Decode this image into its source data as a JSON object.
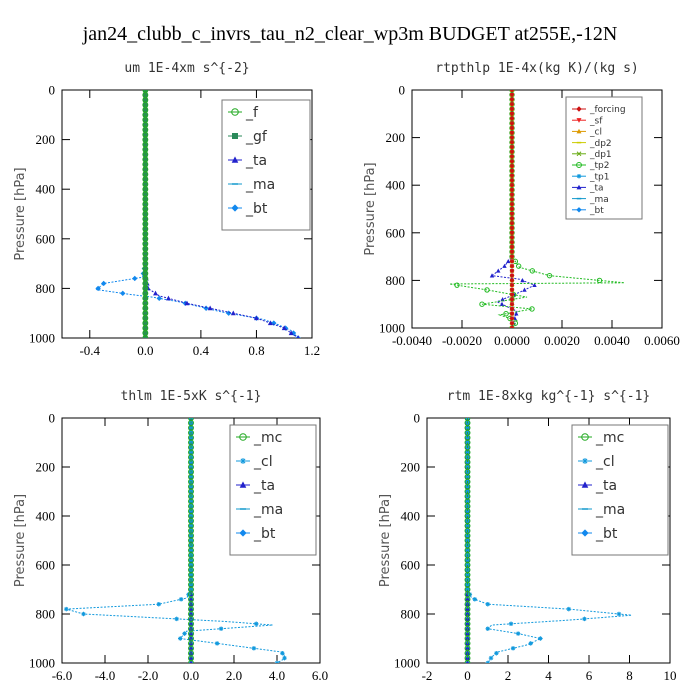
{
  "figure_title": "jan24_clubb_c_invrs_tau_n2_clear_wp3m  BUDGET at255E,-12N",
  "chart_data": [
    {
      "type": "line",
      "title": "um  1E-4xm s^{-2}",
      "ylabel": "Pressure [hPa]",
      "xlim": [
        -0.6,
        1.2
      ],
      "ylim": [
        1000,
        0
      ],
      "x_ticks": [
        "-0.4",
        "0.0",
        "0.4",
        "0.8",
        "1.2"
      ],
      "x_tick_values": [
        -0.4,
        0.0,
        0.4,
        0.8,
        1.2
      ],
      "y_ticks": [
        "0",
        "200",
        "400",
        "600",
        "800",
        "1000"
      ],
      "legend_position": "upper-right",
      "series": [
        {
          "name": "_f",
          "color": "#22aa22",
          "marker": "circle",
          "x": [
            0,
            0,
            0,
            0,
            0,
            0,
            0,
            0,
            0,
            0,
            0
          ],
          "y": [
            0,
            100,
            200,
            300,
            400,
            500,
            600,
            700,
            800,
            900,
            1000
          ]
        },
        {
          "name": "_gf",
          "color": "#2a8a5a",
          "marker": "square",
          "x": [
            0,
            0,
            0,
            0,
            0,
            0,
            0,
            0,
            0,
            0,
            0
          ],
          "y": [
            0,
            100,
            200,
            300,
            400,
            500,
            600,
            700,
            800,
            900,
            1000
          ]
        },
        {
          "name": "_ta",
          "color": "#2222cc",
          "marker": "triangle",
          "x": [
            0,
            0,
            0.02,
            0.1,
            0.3,
            0.55,
            0.8,
            1.0,
            1.1
          ],
          "y": [
            0,
            740,
            800,
            830,
            860,
            890,
            920,
            960,
            1000
          ]
        },
        {
          "name": "_ma",
          "color": "#1199cc",
          "marker": "dash",
          "x": [
            0,
            0,
            0,
            0,
            0,
            0,
            0,
            0,
            0,
            0,
            0
          ],
          "y": [
            0,
            100,
            200,
            300,
            400,
            500,
            600,
            700,
            800,
            900,
            1000
          ]
        },
        {
          "name": "_bt",
          "color": "#1188ee",
          "marker": "diamond",
          "x": [
            0,
            0,
            0,
            -0.02,
            -0.3,
            -0.35,
            -0.1,
            0.05,
            0.25,
            0.4,
            0.55,
            0.7,
            0.85,
            0.95,
            1.05,
            1.1
          ],
          "y": [
            0,
            400,
            700,
            755,
            780,
            805,
            825,
            835,
            855,
            875,
            895,
            910,
            925,
            945,
            970,
            1000
          ]
        }
      ]
    },
    {
      "type": "line",
      "title": "rtpthlp  1E-4x(kg K)/(kg s)",
      "ylabel": "Pressure [hPa]",
      "xlim": [
        -0.004,
        0.006
      ],
      "ylim": [
        1000,
        0
      ],
      "x_ticks": [
        "-0.0040",
        "-0.0020",
        "0.0000",
        "0.0020",
        "0.0040",
        "0.0060"
      ],
      "x_tick_values": [
        -0.004,
        -0.002,
        0.0,
        0.002,
        0.004,
        0.006
      ],
      "y_ticks": [
        "0",
        "200",
        "400",
        "600",
        "800",
        "1000"
      ],
      "legend_position": "upper-right",
      "series": [
        {
          "name": "_forcing",
          "color": "#cc1111",
          "marker": "diamond",
          "x": [
            0,
            0,
            0,
            0,
            0,
            0,
            0,
            0,
            0,
            0,
            0
          ],
          "y": [
            0,
            100,
            200,
            300,
            400,
            500,
            600,
            700,
            800,
            900,
            1000
          ]
        },
        {
          "name": "_sf",
          "color": "#ee2222",
          "marker": "triangle-down",
          "x": [
            0,
            0,
            0,
            0,
            0,
            0,
            0,
            0,
            0,
            0,
            0
          ],
          "y": [
            0,
            100,
            200,
            300,
            400,
            500,
            600,
            700,
            800,
            900,
            1000
          ]
        },
        {
          "name": "_cl",
          "color": "#dd9900",
          "marker": "triangle",
          "x": [
            0,
            0,
            0,
            0,
            0,
            0,
            0,
            0,
            0,
            0,
            0
          ],
          "y": [
            0,
            100,
            200,
            300,
            400,
            500,
            600,
            700,
            800,
            900,
            1000
          ]
        },
        {
          "name": "_dp2",
          "color": "#cccc00",
          "marker": "dash",
          "x": [
            0,
            0,
            0,
            0,
            0,
            0,
            0,
            0,
            0,
            0,
            0
          ],
          "y": [
            0,
            100,
            200,
            300,
            400,
            500,
            600,
            700,
            800,
            900,
            1000
          ]
        },
        {
          "name": "_dp1",
          "color": "#66aa11",
          "marker": "x",
          "x": [
            0,
            0,
            0,
            0,
            0,
            0,
            0,
            0,
            0,
            0,
            0
          ],
          "y": [
            0,
            100,
            200,
            300,
            400,
            500,
            600,
            700,
            800,
            900,
            1000
          ]
        },
        {
          "name": "_tp2",
          "color": "#22bb22",
          "marker": "circle",
          "x": [
            0,
            0,
            0.0003,
            0.0015,
            0.0045,
            -0.0025,
            -0.001,
            0.0006,
            -0.0012,
            0.0008,
            -0.0005,
            0.0002,
            0
          ],
          "y": [
            0,
            700,
            745,
            780,
            810,
            815,
            840,
            870,
            900,
            920,
            945,
            970,
            1000
          ]
        },
        {
          "name": "_tp1",
          "color": "#1199dd",
          "marker": "star",
          "x": [
            0,
            0,
            0,
            0,
            0,
            0,
            0,
            0,
            0,
            0,
            0
          ],
          "y": [
            0,
            100,
            200,
            300,
            400,
            500,
            600,
            700,
            800,
            900,
            1000
          ]
        },
        {
          "name": "_ta",
          "color": "#2222cc",
          "marker": "triangle",
          "x": [
            0,
            0,
            -0.0003,
            -0.0008,
            0.0003,
            0.0009,
            0.0003,
            -0.0006,
            0.0002,
            0
          ],
          "y": [
            0,
            700,
            740,
            780,
            795,
            820,
            850,
            890,
            930,
            1000
          ]
        },
        {
          "name": "_ma",
          "color": "#1199cc",
          "marker": "dash",
          "x": [
            0,
            0,
            0,
            0,
            0,
            0,
            0,
            0,
            0,
            0,
            0
          ],
          "y": [
            0,
            100,
            200,
            300,
            400,
            500,
            600,
            700,
            800,
            900,
            1000
          ]
        },
        {
          "name": "_bt",
          "color": "#1188ee",
          "marker": "diamond",
          "x": [
            0,
            0,
            0,
            0,
            0,
            0,
            0,
            0,
            0,
            0,
            0
          ],
          "y": [
            0,
            100,
            200,
            300,
            400,
            500,
            600,
            700,
            800,
            900,
            1000
          ]
        }
      ]
    },
    {
      "type": "line",
      "title": "thlm  1E-5xK s^{-1}",
      "ylabel": "Pressure [hPa]",
      "xlim": [
        -6.0,
        6.0
      ],
      "ylim": [
        1000,
        0
      ],
      "x_ticks": [
        "-6.0",
        "-4.0",
        "-2.0",
        "0.0",
        "2.0",
        "4.0",
        "6.0"
      ],
      "x_tick_values": [
        -6,
        -4,
        -2,
        0,
        2,
        4,
        6
      ],
      "y_ticks": [
        "0",
        "200",
        "400",
        "600",
        "800",
        "1000"
      ],
      "legend_position": "upper-right",
      "series": [
        {
          "name": "_mc",
          "color": "#22aa22",
          "marker": "circle",
          "x": [
            0,
            0,
            0,
            0,
            0,
            0,
            0,
            0,
            0,
            0,
            0
          ],
          "y": [
            0,
            100,
            200,
            300,
            400,
            500,
            600,
            700,
            800,
            900,
            1000
          ]
        },
        {
          "name": "_cl",
          "color": "#1199dd",
          "marker": "star",
          "x": [
            0,
            0,
            0,
            -0.2,
            -1.5,
            -5.8,
            -5.0,
            1.5,
            3.8,
            -0.2,
            -0.5,
            2.5,
            4.2,
            4.4,
            4.3,
            4.0
          ],
          "y": [
            0,
            400,
            700,
            735,
            760,
            780,
            800,
            830,
            845,
            870,
            900,
            935,
            955,
            975,
            985,
            1000
          ]
        },
        {
          "name": "_ta",
          "color": "#2222cc",
          "marker": "triangle",
          "x": [
            0,
            0,
            0,
            0,
            0,
            0,
            0,
            0,
            0,
            0,
            0
          ],
          "y": [
            0,
            100,
            200,
            300,
            400,
            500,
            600,
            700,
            800,
            900,
            1000
          ]
        },
        {
          "name": "_ma",
          "color": "#1199cc",
          "marker": "dash",
          "x": [
            0,
            0,
            0,
            0,
            0,
            0,
            0,
            0,
            0,
            0,
            0
          ],
          "y": [
            0,
            100,
            200,
            300,
            400,
            500,
            600,
            700,
            800,
            900,
            1000
          ]
        },
        {
          "name": "_bt",
          "color": "#1188ee",
          "marker": "diamond",
          "x": [
            0,
            0,
            0,
            0,
            0,
            0,
            0,
            0,
            0,
            0,
            0
          ],
          "y": [
            0,
            100,
            200,
            300,
            400,
            500,
            600,
            700,
            800,
            900,
            1000
          ]
        }
      ]
    },
    {
      "type": "line",
      "title": "rtm  1E-8xkg kg^{-1} s^{-1}",
      "ylabel": "Pressure [hPa]",
      "xlim": [
        -2,
        10
      ],
      "ylim": [
        1000,
        0
      ],
      "x_ticks": [
        "-2",
        "0",
        "2",
        "4",
        "6",
        "8",
        "10"
      ],
      "x_tick_values": [
        -2,
        0,
        2,
        4,
        6,
        8,
        10
      ],
      "y_ticks": [
        "0",
        "200",
        "400",
        "600",
        "800",
        "1000"
      ],
      "legend_position": "upper-right",
      "series": [
        {
          "name": "_mc",
          "color": "#22aa22",
          "marker": "circle",
          "x": [
            0,
            0,
            0,
            0,
            0,
            0,
            0,
            0,
            0,
            0,
            0
          ],
          "y": [
            0,
            100,
            200,
            300,
            400,
            500,
            600,
            700,
            800,
            900,
            1000
          ]
        },
        {
          "name": "_cl",
          "color": "#1199dd",
          "marker": "star",
          "x": [
            0,
            0,
            0,
            0.2,
            1.0,
            5.0,
            8.1,
            5.0,
            1.2,
            1.0,
            2.5,
            3.6,
            3.0,
            1.5,
            1.2,
            1.0
          ],
          "y": [
            0,
            400,
            700,
            735,
            760,
            780,
            805,
            825,
            845,
            860,
            880,
            900,
            925,
            955,
            975,
            1000
          ]
        },
        {
          "name": "_ta",
          "color": "#2222cc",
          "marker": "triangle",
          "x": [
            0,
            0,
            0,
            0,
            0,
            0,
            0,
            0,
            0,
            0,
            0
          ],
          "y": [
            0,
            100,
            200,
            300,
            400,
            500,
            600,
            700,
            800,
            900,
            1000
          ]
        },
        {
          "name": "_ma",
          "color": "#1199cc",
          "marker": "dash",
          "x": [
            0,
            0,
            0,
            0,
            0,
            0,
            0,
            0,
            0,
            0,
            0
          ],
          "y": [
            0,
            100,
            200,
            300,
            400,
            500,
            600,
            700,
            800,
            900,
            1000
          ]
        },
        {
          "name": "_bt",
          "color": "#1188ee",
          "marker": "diamond",
          "x": [
            0,
            0,
            0,
            0,
            0,
            0,
            0,
            0,
            0,
            0,
            0
          ],
          "y": [
            0,
            100,
            200,
            300,
            400,
            500,
            600,
            700,
            800,
            900,
            1000
          ]
        }
      ]
    }
  ]
}
